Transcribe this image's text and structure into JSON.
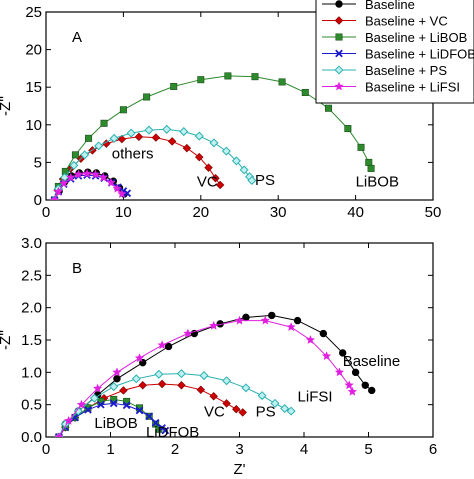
{
  "chart_data": [
    {
      "type": "line",
      "panel_label": "A",
      "xlim": [
        0,
        50
      ],
      "ylim": [
        0,
        25
      ],
      "xticks": [
        0,
        10,
        20,
        30,
        40,
        50
      ],
      "yticks": [
        0,
        5,
        10,
        15,
        20,
        25
      ],
      "xlabel": "",
      "ylabel": "-Z''",
      "series": [
        {
          "name": "Baseline",
          "color": "#000000",
          "marker": "circle",
          "x": [
            1.1,
            1.7,
            2.4,
            3.3,
            4.3,
            5.4,
            6.5,
            7.6,
            8.7,
            9.5,
            10.1
          ],
          "y": [
            0.0,
            1.2,
            2.4,
            3.2,
            3.6,
            3.7,
            3.6,
            3.2,
            2.5,
            1.6,
            0.8
          ]
        },
        {
          "name": "Baseline + VC",
          "color": "#cc0000",
          "marker": "diamond",
          "x": [
            1.1,
            1.5,
            2.2,
            3.2,
            4.5,
            6.0,
            7.8,
            9.8,
            12.0,
            14.2,
            16.3,
            18.2,
            19.8,
            21.0,
            21.9,
            22.5
          ],
          "y": [
            0.0,
            1.3,
            2.8,
            4.2,
            5.5,
            6.6,
            7.5,
            8.1,
            8.4,
            8.3,
            7.8,
            6.9,
            5.7,
            4.3,
            2.9,
            2.0
          ]
        },
        {
          "name": "Baseline + LiBOB",
          "color": "#2d8a2d",
          "marker": "square",
          "x": [
            1.1,
            1.6,
            2.5,
            3.8,
            5.5,
            7.5,
            10.0,
            13.0,
            16.5,
            20.0,
            23.5,
            27.0,
            30.5,
            33.5,
            36.5,
            39.0,
            40.7,
            41.7,
            42.0
          ],
          "y": [
            0.0,
            1.8,
            3.8,
            6.0,
            8.2,
            10.2,
            12.0,
            13.7,
            15.1,
            16.0,
            16.5,
            16.4,
            15.7,
            14.3,
            12.2,
            9.5,
            7.0,
            5.0,
            4.2
          ]
        },
        {
          "name": "Baseline + LiDFOB",
          "color": "#1a1acc",
          "marker": "x",
          "x": [
            1.1,
            1.6,
            2.3,
            3.2,
            4.2,
            5.3,
            6.4,
            7.5,
            8.5,
            9.3,
            10.0,
            10.5
          ],
          "y": [
            0.0,
            1.1,
            2.1,
            2.8,
            3.2,
            3.3,
            3.2,
            2.9,
            2.3,
            1.7,
            1.2,
            0.9
          ]
        },
        {
          "name": "Baseline + PS",
          "color": "#2ab0b0",
          "marker": "diamond-open",
          "x": [
            1.1,
            1.6,
            2.4,
            3.6,
            5.0,
            6.8,
            8.8,
            11.0,
            13.3,
            15.6,
            17.8,
            19.8,
            21.7,
            23.3,
            24.6,
            25.6,
            26.3,
            26.6
          ],
          "y": [
            0.0,
            1.5,
            3.0,
            4.6,
            6.0,
            7.2,
            8.2,
            8.9,
            9.3,
            9.4,
            9.1,
            8.5,
            7.6,
            6.5,
            5.2,
            4.0,
            3.1,
            2.6
          ]
        },
        {
          "name": "Baseline + LiFSI",
          "color": "#e020e0",
          "marker": "star",
          "x": [
            1.1,
            1.6,
            2.3,
            3.2,
            4.2,
            5.3,
            6.4,
            7.4,
            8.4,
            9.2,
            9.8
          ],
          "y": [
            0.0,
            1.1,
            2.2,
            3.0,
            3.4,
            3.5,
            3.4,
            3.0,
            2.3,
            1.5,
            0.8
          ]
        }
      ],
      "annotations": [
        {
          "text": "others",
          "x": 8.5,
          "y": 5.5
        },
        {
          "text": "VC",
          "x": 19.5,
          "y": 1.8
        },
        {
          "text": "PS",
          "x": 27.0,
          "y": 2.0
        },
        {
          "text": "LiBOB",
          "x": 40.0,
          "y": 1.8
        }
      ],
      "legend_position": "top-right"
    },
    {
      "type": "line",
      "panel_label": "B",
      "xlim": [
        0,
        6
      ],
      "ylim": [
        0,
        3.0
      ],
      "xticks": [
        0,
        1,
        2,
        3,
        4,
        5,
        6
      ],
      "yticks": [
        0.0,
        0.5,
        1.0,
        1.5,
        2.0,
        2.5,
        3.0
      ],
      "xlabel": "Z'",
      "ylabel": "-Z''",
      "series": [
        {
          "name": "Baseline",
          "color": "#000000",
          "marker": "circle",
          "x": [
            0.2,
            0.3,
            0.5,
            0.8,
            1.1,
            1.5,
            1.9,
            2.3,
            2.7,
            3.1,
            3.5,
            3.9,
            4.3,
            4.6,
            4.8,
            4.95,
            5.05
          ],
          "y": [
            0.0,
            0.2,
            0.4,
            0.65,
            0.9,
            1.15,
            1.4,
            1.6,
            1.75,
            1.85,
            1.88,
            1.8,
            1.6,
            1.3,
            1.0,
            0.8,
            0.72
          ]
        },
        {
          "name": "Baseline + VC",
          "color": "#cc0000",
          "marker": "diamond",
          "x": [
            0.2,
            0.3,
            0.45,
            0.65,
            0.9,
            1.2,
            1.5,
            1.8,
            2.1,
            2.4,
            2.6,
            2.8,
            2.95,
            3.05
          ],
          "y": [
            0.0,
            0.15,
            0.3,
            0.45,
            0.6,
            0.72,
            0.8,
            0.82,
            0.8,
            0.73,
            0.63,
            0.52,
            0.43,
            0.38
          ]
        },
        {
          "name": "Baseline + LiBOB",
          "color": "#2d8a2d",
          "marker": "square",
          "x": [
            0.2,
            0.3,
            0.45,
            0.65,
            0.85,
            1.05,
            1.25,
            1.45,
            1.6,
            1.7,
            1.75
          ],
          "y": [
            0.0,
            0.15,
            0.3,
            0.45,
            0.55,
            0.58,
            0.55,
            0.45,
            0.32,
            0.2,
            0.12
          ]
        },
        {
          "name": "Baseline + LiDFOB",
          "color": "#1a1acc",
          "marker": "x",
          "x": [
            0.2,
            0.3,
            0.45,
            0.65,
            0.85,
            1.05,
            1.25,
            1.45,
            1.6,
            1.7,
            1.8,
            1.85
          ],
          "y": [
            0.0,
            0.15,
            0.3,
            0.42,
            0.5,
            0.52,
            0.49,
            0.41,
            0.32,
            0.22,
            0.14,
            0.1
          ]
        },
        {
          "name": "Baseline + PS",
          "color": "#2ab0b0",
          "marker": "diamond-open",
          "x": [
            0.2,
            0.3,
            0.5,
            0.75,
            1.05,
            1.4,
            1.75,
            2.1,
            2.45,
            2.8,
            3.1,
            3.35,
            3.55,
            3.7,
            3.8
          ],
          "y": [
            0.0,
            0.2,
            0.4,
            0.6,
            0.78,
            0.9,
            0.97,
            0.98,
            0.95,
            0.87,
            0.76,
            0.64,
            0.52,
            0.44,
            0.4
          ]
        },
        {
          "name": "Baseline + LiFSI",
          "color": "#e020e0",
          "marker": "star",
          "x": [
            0.2,
            0.35,
            0.55,
            0.8,
            1.1,
            1.45,
            1.8,
            2.2,
            2.6,
            3.0,
            3.4,
            3.8,
            4.1,
            4.35,
            4.55,
            4.7,
            4.75
          ],
          "y": [
            0.0,
            0.25,
            0.5,
            0.75,
            1.0,
            1.22,
            1.42,
            1.6,
            1.72,
            1.8,
            1.8,
            1.7,
            1.5,
            1.25,
            1.0,
            0.8,
            0.7
          ]
        }
      ],
      "annotations": [
        {
          "text": "Baseline",
          "x": 4.6,
          "y": 1.1
        },
        {
          "text": "LiFSI",
          "x": 3.9,
          "y": 0.55
        },
        {
          "text": "VC",
          "x": 2.45,
          "y": 0.32
        },
        {
          "text": "PS",
          "x": 3.25,
          "y": 0.32
        },
        {
          "text": "LiBOB",
          "x": 0.75,
          "y": 0.14
        },
        {
          "text": "LiDFOB",
          "x": 1.55,
          "y": 0.0
        }
      ]
    }
  ]
}
